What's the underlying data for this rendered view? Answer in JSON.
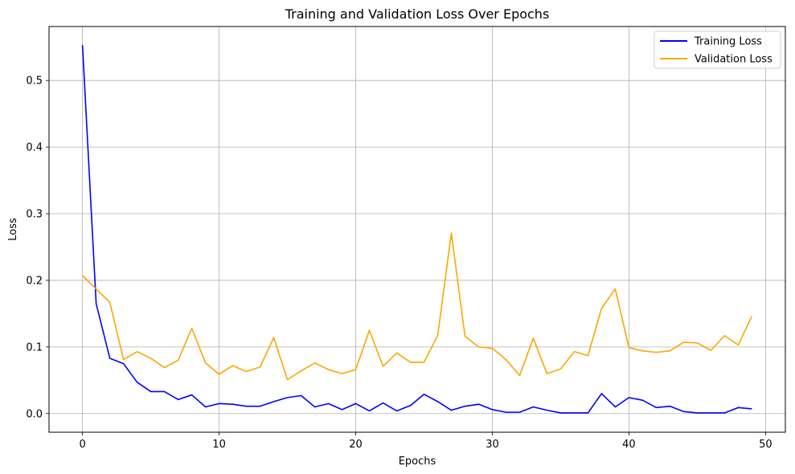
{
  "chart_data": {
    "type": "line",
    "title": "Training and Validation Loss Over Epochs",
    "xlabel": "Epochs",
    "ylabel": "Loss",
    "xlim": [
      -2.45,
      51.45
    ],
    "ylim": [
      -0.028,
      0.581
    ],
    "xticks": [
      0,
      10,
      20,
      30,
      40,
      50
    ],
    "yticks": [
      0.0,
      0.1,
      0.2,
      0.3,
      0.4,
      0.5
    ],
    "xtick_labels": [
      "0",
      "10",
      "20",
      "30",
      "40",
      "50"
    ],
    "ytick_labels": [
      "0.0",
      "0.1",
      "0.2",
      "0.3",
      "0.4",
      "0.5"
    ],
    "grid": true,
    "legend_position": "top-right",
    "x": [
      0,
      1,
      2,
      3,
      4,
      5,
      6,
      7,
      8,
      9,
      10,
      11,
      12,
      13,
      14,
      15,
      16,
      17,
      18,
      19,
      20,
      21,
      22,
      23,
      24,
      25,
      26,
      27,
      28,
      29,
      30,
      31,
      32,
      33,
      34,
      35,
      36,
      37,
      38,
      39,
      40,
      41,
      42,
      43,
      44,
      45,
      46,
      47,
      48,
      49
    ],
    "series": [
      {
        "name": "Training Loss",
        "color": "#0000ff",
        "values": [
          0.553,
          0.165,
          0.083,
          0.075,
          0.047,
          0.033,
          0.033,
          0.021,
          0.028,
          0.01,
          0.015,
          0.014,
          0.011,
          0.011,
          0.018,
          0.024,
          0.027,
          0.01,
          0.015,
          0.006,
          0.015,
          0.004,
          0.016,
          0.004,
          0.012,
          0.029,
          0.018,
          0.005,
          0.011,
          0.014,
          0.006,
          0.002,
          0.002,
          0.01,
          0.005,
          0.001,
          0.001,
          0.001,
          0.03,
          0.01,
          0.024,
          0.02,
          0.009,
          0.011,
          0.003,
          0.001,
          0.001,
          0.001,
          0.009,
          0.007
        ]
      },
      {
        "name": "Validation Loss",
        "color": "#ffa500",
        "values": [
          0.207,
          0.187,
          0.167,
          0.081,
          0.093,
          0.083,
          0.069,
          0.08,
          0.128,
          0.076,
          0.059,
          0.072,
          0.063,
          0.07,
          0.114,
          0.051,
          0.064,
          0.076,
          0.066,
          0.06,
          0.066,
          0.125,
          0.071,
          0.091,
          0.077,
          0.077,
          0.117,
          0.271,
          0.116,
          0.1,
          0.098,
          0.081,
          0.057,
          0.113,
          0.06,
          0.067,
          0.093,
          0.087,
          0.158,
          0.187,
          0.099,
          0.094,
          0.092,
          0.094,
          0.107,
          0.106,
          0.095,
          0.117,
          0.103,
          0.146
        ]
      }
    ]
  }
}
